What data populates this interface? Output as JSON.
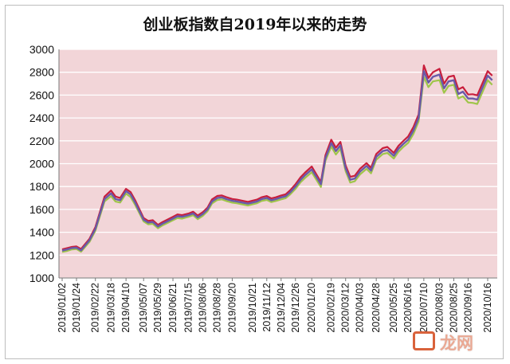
{
  "chart_data": {
    "type": "line",
    "title": "创业板指数自2019年以来的走势",
    "xlabel": "",
    "ylabel": "",
    "ylim": [
      1000,
      3000
    ],
    "yticks": [
      1000,
      1200,
      1400,
      1600,
      1800,
      2000,
      2200,
      2400,
      2600,
      2800,
      3000
    ],
    "grid": "horizontal",
    "legend": "none",
    "colors": {
      "plot_background": "#f2d5d8",
      "close": "#6a5aa8",
      "high": "#c81e3c",
      "low": "#9fc54a",
      "grid": "#ffffff"
    },
    "xticks": [
      "2019/01/02",
      "2019/01/24",
      "2019/02/22",
      "2019/03/18",
      "2019/04/10",
      "2019/05/07",
      "2019/05/29",
      "2019/06/21",
      "2019/07/15",
      "2019/08/06",
      "2019/08/28",
      "2019/09/20",
      "2019/10/21",
      "2019/11/12",
      "2019/12/04",
      "2019/12/26",
      "2020/01/20",
      "2020/02/19",
      "2020/03/12",
      "2020/04/03",
      "2020/04/28",
      "2020/05/25",
      "2020/06/16",
      "2020/07/10",
      "2020/08/03",
      "2020/08/25",
      "2020/09/16",
      "2020/10/16"
    ],
    "x": [
      "2019/01/02",
      "2019/01/10",
      "2019/01/17",
      "2019/01/24",
      "2019/01/31",
      "2019/02/13",
      "2019/02/22",
      "2019/03/01",
      "2019/03/08",
      "2019/03/18",
      "2019/03/25",
      "2019/04/01",
      "2019/04/10",
      "2019/04/17",
      "2019/04/24",
      "2019/05/07",
      "2019/05/14",
      "2019/05/21",
      "2019/05/29",
      "2019/06/05",
      "2019/06/14",
      "2019/06/21",
      "2019/06/28",
      "2019/07/05",
      "2019/07/15",
      "2019/07/22",
      "2019/07/29",
      "2019/08/06",
      "2019/08/13",
      "2019/08/20",
      "2019/08/28",
      "2019/09/04",
      "2019/09/11",
      "2019/09/20",
      "2019/09/27",
      "2019/10/14",
      "2019/10/21",
      "2019/10/28",
      "2019/11/04",
      "2019/11/12",
      "2019/11/19",
      "2019/11/26",
      "2019/12/04",
      "2019/12/11",
      "2019/12/18",
      "2019/12/26",
      "2020/01/03",
      "2020/01/10",
      "2020/01/20",
      "2020/02/03",
      "2020/02/10",
      "2020/02/19",
      "2020/02/26",
      "2020/03/04",
      "2020/03/12",
      "2020/03/19",
      "2020/03/26",
      "2020/04/03",
      "2020/04/13",
      "2020/04/20",
      "2020/04/28",
      "2020/05/08",
      "2020/05/15",
      "2020/05/25",
      "2020/06/01",
      "2020/06/08",
      "2020/06/16",
      "2020/06/24",
      "2020/07/02",
      "2020/07/10",
      "2020/07/17",
      "2020/07/24",
      "2020/08/03",
      "2020/08/10",
      "2020/08/17",
      "2020/08/25",
      "2020/09/01",
      "2020/09/08",
      "2020/09/16",
      "2020/09/23",
      "2020/09/30",
      "2020/10/16",
      "2020/10/23"
    ],
    "series": [
      {
        "name": "",
        "role": "close",
        "values": [
          1240,
          1250,
          1262,
          1265,
          1242,
          1330,
          1430,
          1560,
          1690,
          1740,
          1690,
          1680,
          1760,
          1730,
          1660,
          1510,
          1485,
          1490,
          1450,
          1475,
          1500,
          1520,
          1540,
          1535,
          1550,
          1565,
          1530,
          1560,
          1600,
          1670,
          1700,
          1705,
          1690,
          1675,
          1670,
          1650,
          1660,
          1670,
          1690,
          1700,
          1680,
          1690,
          1705,
          1715,
          1750,
          1800,
          1860,
          1900,
          1950,
          1820,
          2050,
          2180,
          2110,
          2160,
          1960,
          1860,
          1870,
          1930,
          1980,
          1940,
          2060,
          2110,
          2120,
          2070,
          2130,
          2170,
          2210,
          2290,
          2400,
          2810,
          2710,
          2760,
          2780,
          2660,
          2720,
          2730,
          2610,
          2630,
          2570,
          2570,
          2560,
          2770,
          2730
        ]
      },
      {
        "name": "",
        "role": "high",
        "values": [
          1250,
          1262,
          1272,
          1276,
          1254,
          1343,
          1445,
          1578,
          1712,
          1765,
          1712,
          1700,
          1780,
          1752,
          1680,
          1525,
          1500,
          1506,
          1465,
          1489,
          1515,
          1535,
          1556,
          1550,
          1564,
          1580,
          1546,
          1576,
          1616,
          1688,
          1718,
          1722,
          1707,
          1691,
          1686,
          1666,
          1676,
          1686,
          1706,
          1717,
          1696,
          1706,
          1722,
          1732,
          1768,
          1820,
          1882,
          1923,
          1975,
          1840,
          2074,
          2210,
          2140,
          2190,
          1985,
          1885,
          1894,
          1955,
          2005,
          1964,
          2085,
          2136,
          2146,
          2095,
          2156,
          2196,
          2238,
          2320,
          2430,
          2860,
          2750,
          2800,
          2830,
          2700,
          2760,
          2770,
          2650,
          2670,
          2605,
          2608,
          2598,
          2810,
          2770
        ]
      },
      {
        "name": "",
        "role": "low",
        "values": [
          1228,
          1237,
          1250,
          1253,
          1230,
          1316,
          1414,
          1541,
          1670,
          1716,
          1668,
          1660,
          1738,
          1708,
          1640,
          1495,
          1470,
          1474,
          1435,
          1460,
          1485,
          1505,
          1524,
          1519,
          1535,
          1549,
          1514,
          1544,
          1584,
          1652,
          1682,
          1688,
          1673,
          1659,
          1654,
          1634,
          1644,
          1654,
          1674,
          1683,
          1664,
          1674,
          1688,
          1698,
          1732,
          1780,
          1838,
          1877,
          1925,
          1796,
          2026,
          2150,
          2080,
          2130,
          1935,
          1835,
          1846,
          1905,
          1955,
          1916,
          2035,
          2084,
          2094,
          2045,
          2104,
          2144,
          2182,
          2260,
          2370,
          2760,
          2670,
          2720,
          2730,
          2620,
          2680,
          2690,
          2570,
          2590,
          2535,
          2532,
          2522,
          2730,
          2690
        ]
      }
    ]
  },
  "watermark": {
    "text": "龙网"
  }
}
